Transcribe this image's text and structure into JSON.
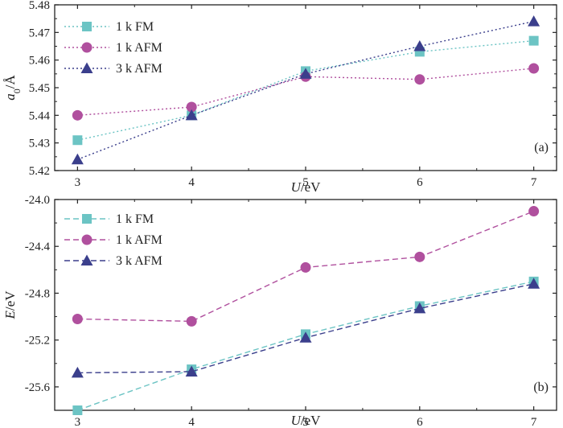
{
  "chart_data": [
    {
      "type": "line",
      "panel_label": "(a)",
      "xlabel_italic": "U",
      "xlabel_rest": "/eV",
      "ylabel_italic": "a",
      "ylabel_sub": "0",
      "ylabel_rest": "/Å",
      "x": [
        3,
        4,
        5,
        6,
        7
      ],
      "xlim": [
        2.8,
        7.2
      ],
      "ylim": [
        5.42,
        5.48
      ],
      "xticks": [
        3,
        4,
        5,
        6,
        7
      ],
      "yticks": [
        5.42,
        5.43,
        5.44,
        5.45,
        5.46,
        5.47,
        5.48
      ],
      "ytick_decimals": 2,
      "line_style": "dotted",
      "legend_position": "top-left",
      "series": [
        {
          "name": "1 k FM",
          "marker": "square",
          "color": "#6cc4c4",
          "values": [
            5.431,
            5.44,
            5.456,
            5.463,
            5.467
          ]
        },
        {
          "name": "1 k AFM",
          "marker": "circle",
          "color": "#b0509e",
          "values": [
            5.44,
            5.443,
            5.454,
            5.453,
            5.457
          ]
        },
        {
          "name": "3 k AFM",
          "marker": "triangle",
          "color": "#3b3f8c",
          "values": [
            5.424,
            5.44,
            5.455,
            5.465,
            5.474
          ]
        }
      ]
    },
    {
      "type": "line",
      "panel_label": "(b)",
      "xlabel_italic": "U",
      "xlabel_rest": "/eV",
      "ylabel_italic": "E",
      "ylabel_sub": "",
      "ylabel_rest": "/eV",
      "x": [
        3,
        4,
        5,
        6,
        7
      ],
      "xlim": [
        2.8,
        7.2
      ],
      "ylim": [
        -25.8,
        -24.0
      ],
      "xticks": [
        3,
        4,
        5,
        6,
        7
      ],
      "yticks": [
        -25.6,
        -25.2,
        -24.8,
        -24.4,
        -24.0
      ],
      "ytick_decimals": 1,
      "line_style": "dashed",
      "legend_position": "top-left",
      "series": [
        {
          "name": "1 k FM",
          "marker": "square",
          "color": "#6cc4c4",
          "values": [
            -25.8,
            -25.45,
            -25.15,
            -24.91,
            -24.7
          ]
        },
        {
          "name": "1 k AFM",
          "marker": "circle",
          "color": "#b0509e",
          "values": [
            -25.02,
            -25.04,
            -24.58,
            -24.49,
            -24.1
          ]
        },
        {
          "name": "3 k AFM",
          "marker": "triangle",
          "color": "#3b3f8c",
          "values": [
            -25.48,
            -25.47,
            -25.18,
            -24.93,
            -24.72
          ]
        }
      ]
    }
  ]
}
